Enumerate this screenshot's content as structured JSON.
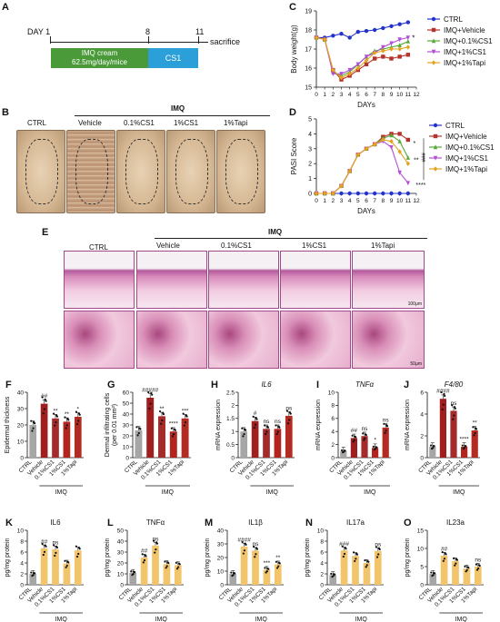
{
  "panel_letters": {
    "A": "A",
    "B": "B",
    "C": "C",
    "D": "D",
    "E": "E",
    "F": "F",
    "G": "G",
    "H": "H",
    "I": "I",
    "J": "J",
    "K": "K",
    "L": "L",
    "M": "M",
    "N": "N",
    "O": "O"
  },
  "timeline": {
    "day_label": "DAY 1",
    "day8": "8",
    "day11": "11",
    "sacrifice": "sacrifice",
    "imq_label": "IMQ cream",
    "imq_dose": "62.5mg/day/mice",
    "cs1_label": "CS1",
    "imq_color": "#4a9a3a",
    "cs1_color": "#2a9fd8"
  },
  "photos": {
    "group_label": "IMQ",
    "labels": [
      "CTRL",
      "Vehicle",
      "0.1%CS1",
      "1%CS1",
      "1%Tapi"
    ]
  },
  "histology": {
    "group_label": "IMQ",
    "labels": [
      "CTRL",
      "Vehicle",
      "0.1%CS1",
      "1%CS1",
      "1%Tapi"
    ],
    "scale_top": "100μm",
    "scale_bottom": "50μm"
  },
  "legend": [
    "CTRL",
    "IMQ+Vehicle",
    "IMQ+0.1%CS1",
    "IMQ+1%CS1",
    "IMQ+1%Tapi"
  ],
  "colors": {
    "CTRL": "#2233cc",
    "Vehicle": "#b5332a",
    "CS01": "#5aa83a",
    "CS1": "#b24cd6",
    "Tapi": "#e6a21e"
  },
  "chart_data": [
    {
      "id": "C",
      "type": "line",
      "ylabel": "Body weight(g)",
      "xlabel": "DAYs",
      "x": [
        0,
        1,
        2,
        3,
        4,
        5,
        6,
        7,
        8,
        9,
        10,
        11
      ],
      "xticks": [
        0,
        1,
        2,
        3,
        4,
        5,
        6,
        7,
        8,
        9,
        10,
        11,
        12
      ],
      "yticks": [
        15,
        16,
        17,
        18,
        19
      ],
      "ylim": [
        15,
        19
      ],
      "series": [
        {
          "name": "CTRL",
          "values": [
            17.6,
            17.6,
            17.7,
            17.8,
            17.6,
            17.9,
            17.95,
            18.0,
            18.1,
            18.2,
            18.3,
            18.4
          ]
        },
        {
          "name": "IMQ+Vehicle",
          "values": [
            17.6,
            17.5,
            15.9,
            15.4,
            15.6,
            15.9,
            16.2,
            16.5,
            16.6,
            16.5,
            16.6,
            16.7
          ]
        },
        {
          "name": "IMQ+0.1%CS1",
          "values": [
            17.6,
            17.5,
            15.8,
            15.6,
            15.8,
            16.2,
            16.6,
            16.9,
            17.0,
            17.1,
            17.2,
            17.4
          ]
        },
        {
          "name": "IMQ+1%CS1",
          "values": [
            17.6,
            17.5,
            15.7,
            15.7,
            15.9,
            16.2,
            16.6,
            16.8,
            17.1,
            17.3,
            17.5,
            17.6
          ]
        },
        {
          "name": "IMQ+1%Tapi",
          "values": [
            17.6,
            17.5,
            15.9,
            15.5,
            15.7,
            16.0,
            16.4,
            16.8,
            16.9,
            17.0,
            17.0,
            17.1
          ]
        }
      ],
      "annotation": "*"
    },
    {
      "id": "D",
      "type": "line",
      "ylabel": "PASI Score",
      "xlabel": "DAYs",
      "x": [
        0,
        1,
        2,
        3,
        4,
        5,
        6,
        7,
        8,
        9,
        10,
        11
      ],
      "xticks": [
        0,
        1,
        2,
        3,
        4,
        5,
        6,
        7,
        8,
        9,
        10,
        11,
        12
      ],
      "yticks": [
        0,
        1,
        2,
        3,
        4,
        5
      ],
      "ylim": [
        0,
        5
      ],
      "series": [
        {
          "name": "CTRL",
          "values": [
            0,
            0,
            0,
            0,
            0,
            0,
            0,
            0,
            0,
            0,
            0,
            0
          ]
        },
        {
          "name": "IMQ+Vehicle",
          "values": [
            0,
            0,
            0,
            0.5,
            1.5,
            2.6,
            3.0,
            3.3,
            3.8,
            4.0,
            4.0,
            3.6
          ]
        },
        {
          "name": "IMQ+0.1%CS1",
          "values": [
            0,
            0,
            0,
            0.5,
            1.5,
            2.6,
            3.0,
            3.3,
            3.7,
            3.9,
            3.5,
            2.4
          ]
        },
        {
          "name": "IMQ+1%CS1",
          "values": [
            0,
            0,
            0,
            0.5,
            1.5,
            2.6,
            3.0,
            3.3,
            3.5,
            3.1,
            1.4,
            0.7
          ]
        },
        {
          "name": "IMQ+1%Tapi",
          "values": [
            0,
            0,
            0,
            0.5,
            1.5,
            2.6,
            3.0,
            3.3,
            3.6,
            3.5,
            2.8,
            2.0
          ]
        }
      ],
      "annotations": [
        "*",
        "**",
        "****"
      ],
      "bracket": "###"
    },
    {
      "id": "F",
      "type": "bar",
      "ylabel": "Epidermal thickness",
      "group_label": "IMQ",
      "categories": [
        "CTRL",
        "Vehicle",
        "0.1%CS1",
        "1%CS1",
        "1%Tapi"
      ],
      "values": [
        20,
        33,
        24,
        22,
        25
      ],
      "ylim": [
        0,
        40
      ],
      "yticks": [
        0,
        10,
        20,
        30,
        40
      ],
      "sig": [
        "",
        "##",
        "**",
        "**",
        "*"
      ]
    },
    {
      "id": "G",
      "type": "bar",
      "ylabel": "Dermal infiltrating cells",
      "ylabel2": "(per 0.01 mm²)",
      "group_label": "IMQ",
      "categories": [
        "CTRL",
        "Vehicle",
        "0.1%CS1",
        "1%CS1",
        "1%Tapi"
      ],
      "values": [
        25,
        55,
        38,
        24,
        36
      ],
      "ylim": [
        0,
        60
      ],
      "yticks": [
        0,
        10,
        20,
        30,
        40,
        50,
        60
      ],
      "sig": [
        "",
        "#####",
        "**",
        "****",
        "***"
      ]
    },
    {
      "id": "H",
      "type": "bar",
      "title": "IL6",
      "ylabel": "mRNA expression",
      "group_label": "IMQ",
      "categories": [
        "CTRL",
        "Vehicle",
        "0.1%CS1",
        "1%CS1",
        "1%Tapi"
      ],
      "values": [
        1.0,
        1.4,
        1.1,
        1.1,
        1.6
      ],
      "ylim": [
        0,
        2.5
      ],
      "yticks": [
        0.0,
        0.5,
        1.0,
        1.5,
        2.0,
        2.5
      ],
      "sig": [
        "",
        "#",
        "ns",
        "ns",
        "ns"
      ]
    },
    {
      "id": "I",
      "type": "bar",
      "title": "TNFα",
      "ylabel": "mRNA expression",
      "group_label": "IMQ",
      "categories": [
        "CTRL",
        "Vehicle",
        "0.1%CS1",
        "1%CS1",
        "1%Tapi"
      ],
      "values": [
        1.0,
        3.0,
        3.3,
        1.5,
        4.6
      ],
      "ylim": [
        0,
        10
      ],
      "yticks": [
        0,
        2,
        4,
        6,
        8,
        10
      ],
      "sig": [
        "",
        "##",
        "ns",
        "*",
        "ns"
      ]
    },
    {
      "id": "J",
      "type": "bar",
      "title": "F4/80",
      "ylabel": "mRNA expression",
      "group_label": "IMQ",
      "categories": [
        "CTRL",
        "Vehicle",
        "0.1%CS1",
        "1%CS1",
        "1%Tapi"
      ],
      "values": [
        1.0,
        5.4,
        4.3,
        1.0,
        2.5
      ],
      "ylim": [
        0,
        6
      ],
      "yticks": [
        0,
        2,
        4,
        6
      ],
      "sig": [
        "",
        "####",
        "ns",
        "****",
        "**"
      ]
    },
    {
      "id": "K",
      "type": "bar",
      "title": "IL6",
      "ylabel": "pg/mg protein",
      "group_label": "IMQ",
      "categories": [
        "CTRL",
        "Vehicle",
        "0.1%CS1",
        "1%CS1",
        "1%Tapi"
      ],
      "values": [
        2,
        6.7,
        6.5,
        3.9,
        6.3
      ],
      "ylim": [
        0,
        10
      ],
      "yticks": [
        0,
        2,
        4,
        6,
        8,
        10
      ],
      "sig": [
        "",
        "##",
        "ns",
        "",
        ""
      ]
    },
    {
      "id": "L",
      "type": "bar",
      "title": "TNFα",
      "ylabel": "pg/mg protein",
      "group_label": "IMQ",
      "categories": [
        "CTRL",
        "Vehicle",
        "0.1%CS1",
        "1%CS1",
        "1%Tapi"
      ],
      "values": [
        11,
        25,
        36,
        19,
        18
      ],
      "ylim": [
        0,
        50
      ],
      "yticks": [
        0,
        10,
        20,
        30,
        40,
        50
      ],
      "sig": [
        "",
        "##",
        "ns",
        "",
        ""
      ]
    },
    {
      "id": "M",
      "type": "bar",
      "title": "IL1β",
      "ylabel": "pg/mg protein",
      "group_label": "IMQ",
      "categories": [
        "CTRL",
        "Vehicle",
        "0.1%CS1",
        "1%CS1",
        "1%Tapi"
      ],
      "values": [
        8,
        28,
        25,
        11,
        15
      ],
      "ylim": [
        0,
        40
      ],
      "yticks": [
        0,
        10,
        20,
        30,
        40
      ],
      "sig": [
        "",
        "####",
        "ns",
        "***",
        "**"
      ]
    },
    {
      "id": "N",
      "type": "bar",
      "title": "IL17a",
      "ylabel": "pg/mg protein",
      "group_label": "IMQ",
      "categories": [
        "CTRL",
        "Vehicle",
        "0.1%CS1",
        "1%CS1",
        "1%Tapi"
      ],
      "values": [
        1.8,
        6.3,
        5.3,
        4.0,
        6.2
      ],
      "ylim": [
        0,
        10
      ],
      "yticks": [
        0,
        2,
        4,
        6,
        8,
        10
      ],
      "sig": [
        "",
        "###",
        "",
        "",
        "ns"
      ]
    },
    {
      "id": "O",
      "type": "bar",
      "title": "IL23a",
      "ylabel": "pg/mg protein",
      "group_label": "IMQ",
      "categories": [
        "CTRL",
        "Vehicle",
        "0.1%CS1",
        "1%CS1",
        "1%Tapi"
      ],
      "values": [
        3,
        8,
        6.5,
        4.5,
        5.0
      ],
      "ylim": [
        0,
        15
      ],
      "yticks": [
        0,
        5,
        10,
        15
      ],
      "sig": [
        "",
        "##",
        "",
        "",
        "ns"
      ]
    }
  ]
}
